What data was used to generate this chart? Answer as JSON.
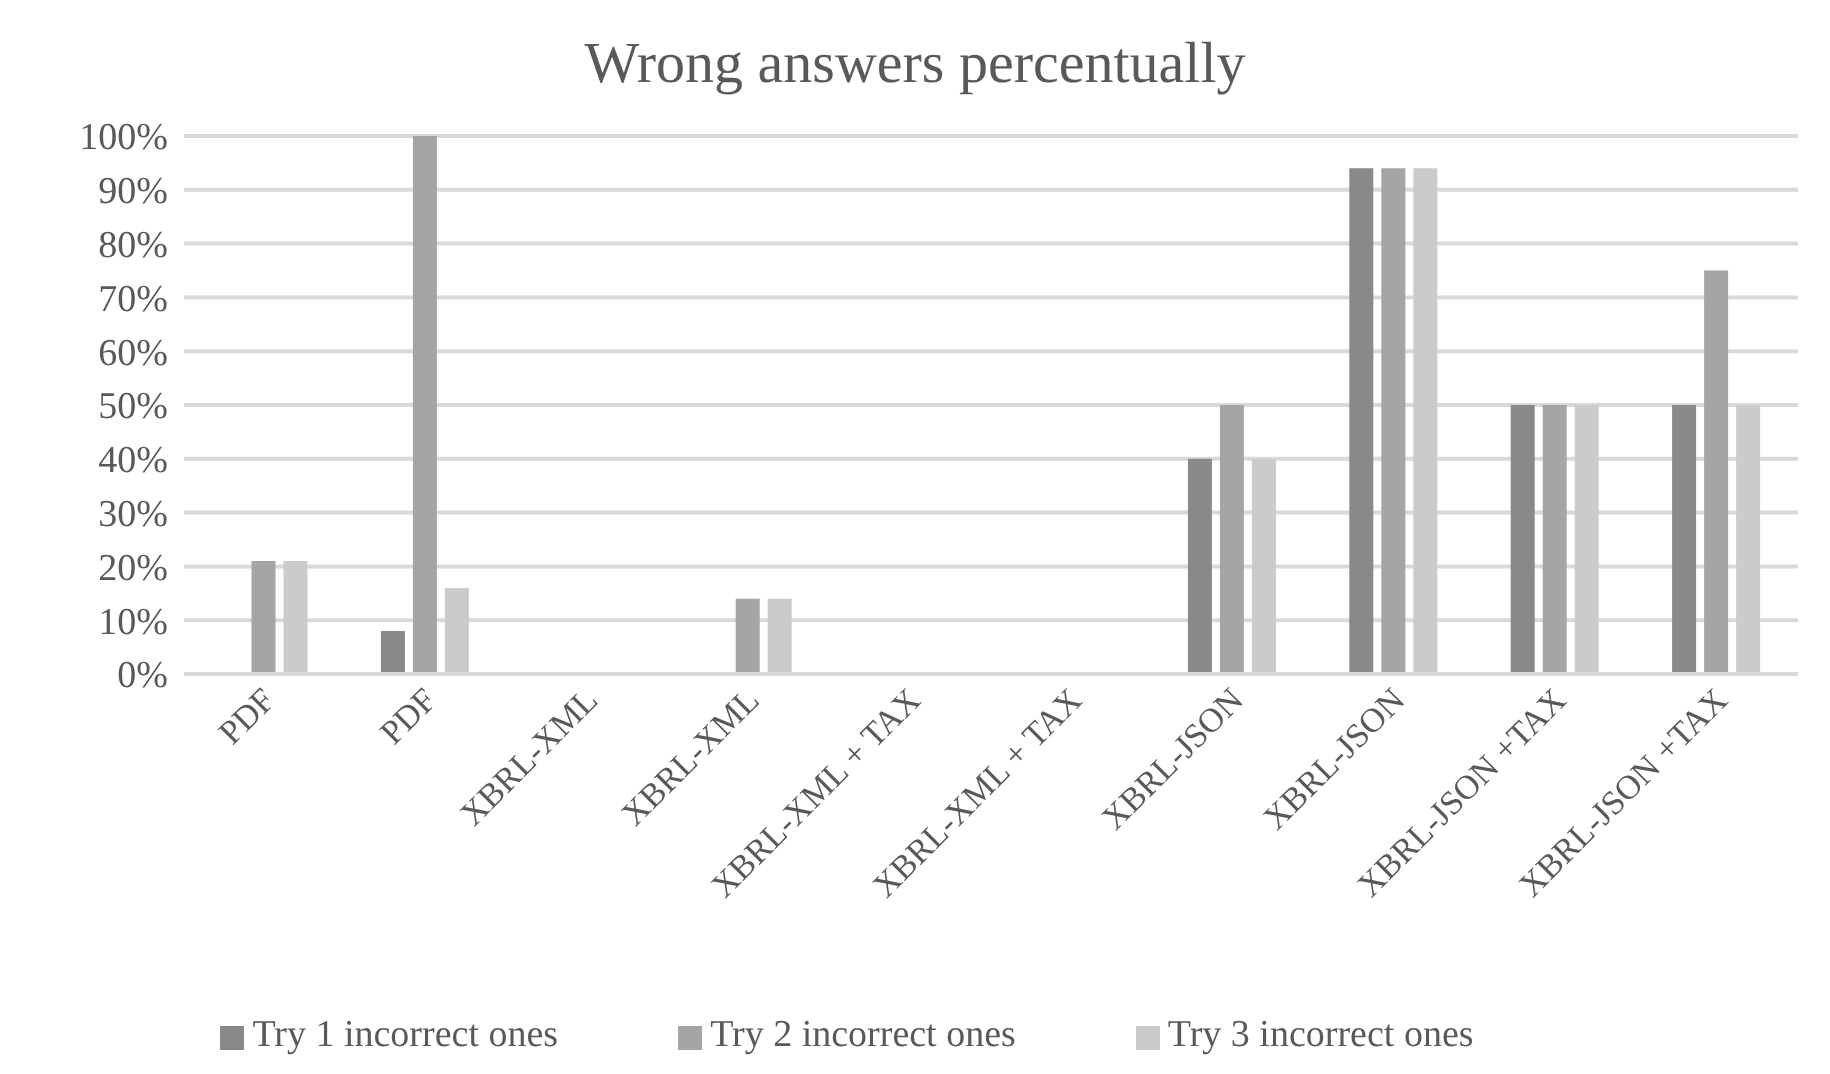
{
  "chart_data": {
    "type": "bar",
    "title": "Wrong answers percentually",
    "categories": [
      "PDF",
      "PDF",
      "XBRL-XML",
      "XBRL-XML",
      "XBRL-XML + TAX",
      "XBRL-XML + TAX",
      "XBRL-JSON",
      "XBRL-JSON",
      "XBRL-JSON +TAX",
      "XBRL-JSON +TAX"
    ],
    "series": [
      {
        "name": "Try 1 incorrect ones",
        "color": "#898989",
        "values": [
          0,
          8,
          0,
          0,
          0,
          0,
          40,
          94,
          50,
          50
        ]
      },
      {
        "name": "Try 2 incorrect ones",
        "color": "#a5a5a5",
        "values": [
          21,
          100,
          0,
          14,
          0,
          0,
          50,
          94,
          50,
          75
        ]
      },
      {
        "name": "Try 3 incorrect ones",
        "color": "#cbcbcb",
        "values": [
          21,
          16,
          0,
          14,
          0,
          0,
          40,
          94,
          50,
          50
        ]
      }
    ],
    "ylim": [
      0,
      100
    ],
    "yticks": [
      {
        "value": 0,
        "label": "0%"
      },
      {
        "value": 10,
        "label": "10%"
      },
      {
        "value": 20,
        "label": "20%"
      },
      {
        "value": 30,
        "label": "30%"
      },
      {
        "value": 40,
        "label": "40%"
      },
      {
        "value": 50,
        "label": "50%"
      },
      {
        "value": 60,
        "label": "60%"
      },
      {
        "value": 70,
        "label": "70%"
      },
      {
        "value": 80,
        "label": "80%"
      },
      {
        "value": 90,
        "label": "90%"
      },
      {
        "value": 100,
        "label": "100%"
      }
    ],
    "grid": "y",
    "legend": "bottom"
  }
}
